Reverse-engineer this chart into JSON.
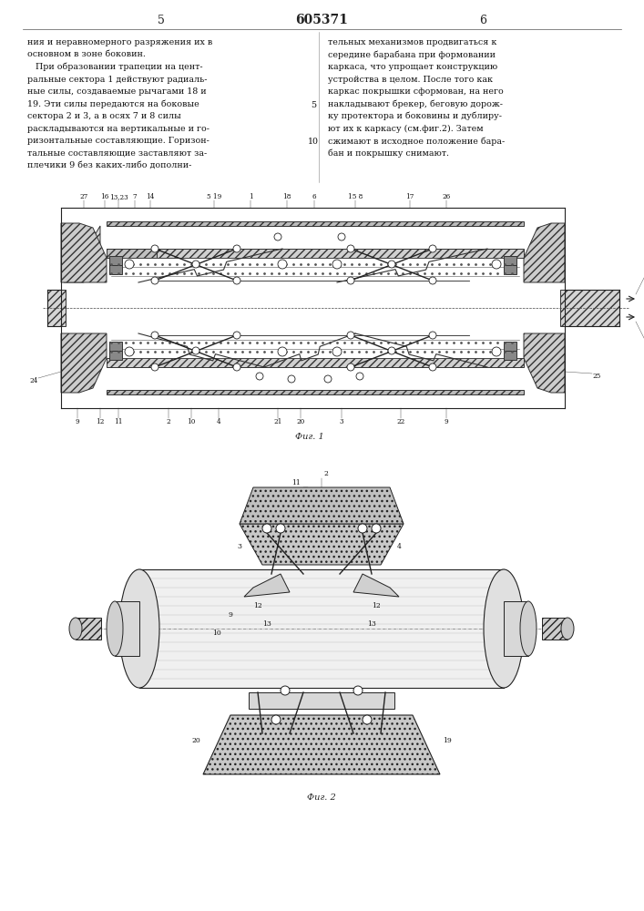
{
  "page_width": 7.07,
  "page_height": 10.0,
  "dpi": 100,
  "bg_color": "#f0ede8",
  "header_left_num": "5",
  "header_center_num": "605371",
  "header_right_num": "6",
  "left_col_text": [
    "ния и неравномерного разряжения их в",
    "основном в зоне боковин.",
    "   При образовании трапеции на цент-",
    "ральные сектора 1 действуют радиаль-",
    "ные силы, создаваемые рычагами 18 и",
    "19. Эти силы передаются на боковые",
    "сектора 2 и 3, а в осях 7 и 8 силы",
    "раскладываются на вертикальные и го-",
    "ризонтальные составляющие. Горизон-",
    "тальные составляющие заставляют за-",
    "плечики 9 без каких-либо дополни-"
  ],
  "right_col_text": [
    "тельных механизмов продвигаться к",
    "середине барабана при формовании",
    "каркаса, что упрощает конструкцию",
    "устройства в целом. После того как",
    "каркас покрышки сформован, на него",
    "накладывают брекер, беговую дорож-",
    "ку протектора и боковины и дублиру-",
    "ют их к каркасу (см.фиг.2). Затем",
    "сжимают в исходное положение бара-",
    "бан и покрышку снимают."
  ],
  "fig1_caption": "Фиг. 1",
  "fig2_caption": "Фиг. 2"
}
